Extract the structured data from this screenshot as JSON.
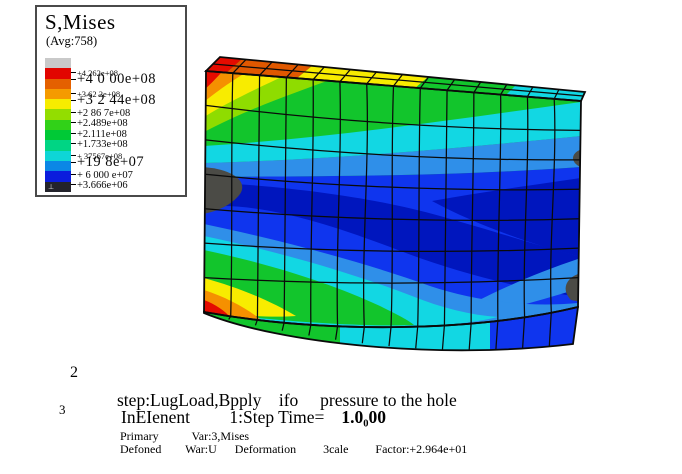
{
  "legend": {
    "title": "S,Mises",
    "subtitle": "(Avg:758)",
    "min_marker": "⊥",
    "colors": [
      "#c9c9c9",
      "#e20500",
      "#e46000",
      "#f59b00",
      "#f6ec00",
      "#93dd00",
      "#31d118",
      "#00c936",
      "#00d584",
      "#0ed6d6",
      "#0b87e6",
      "#0b1ddd",
      "#23232b"
    ],
    "labels": [
      {
        "text": "+4.262e+08",
        "cls": "lbl s"
      },
      {
        "text": "+4 0 00e+08",
        "cls": "lbl l"
      },
      {
        "text": "+3 62 2e+08",
        "cls": "lbl s"
      },
      {
        "text": "+3 2 44e+08",
        "cls": "lbl l"
      },
      {
        "text": "+2 86 7e+08",
        "cls": "lbl m"
      },
      {
        "text": "+2.489e+08",
        "cls": "lbl m"
      },
      {
        "text": "+2.111e+08",
        "cls": "lbl m"
      },
      {
        "text": "+1.733e+08",
        "cls": "lbl m"
      },
      {
        "text": "+ 37567e+08",
        "cls": "lbl s"
      },
      {
        "text": "+19 8e+07",
        "cls": "lbl l"
      },
      {
        "text": "+ 6 000 e+07",
        "cls": "lbl m"
      },
      {
        "text": "+3.666e+06",
        "cls": "lbl m"
      }
    ]
  },
  "model": {
    "palette": {
      "red": "#e40b00",
      "orangered": "#e05800",
      "orange": "#f59000",
      "yellow": "#f8ec00",
      "lime": "#8fdc00",
      "green": "#12c52c",
      "cyan": "#12d7e3",
      "sky": "#2f8fe9",
      "royal": "#0f35ee",
      "navy": "#0016be",
      "gray": "#4b4b46",
      "mesh": "#0a0a0a"
    }
  },
  "footer": {
    "fig_label_2": "2",
    "fig_label_3": "3",
    "line1": "step:LugLoad,Bpply    ifo     pressure to the hole",
    "line2_label": "InEIenent         1:Step Time=",
    "line2_value": "1.0₀00",
    "line3": "Primary           Var:3,Mises",
    "line4": "Defoned        War:U      Deformation         3cale         Factor:+2.964e+01"
  }
}
